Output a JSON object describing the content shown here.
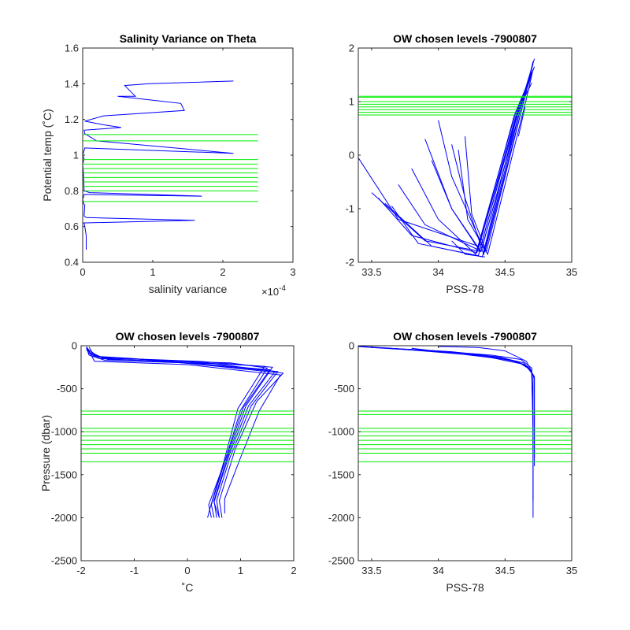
{
  "chart_data": [
    {
      "id": "tl",
      "type": "line",
      "title": "Salinity Variance on Theta",
      "xlabel": "salinity variance",
      "ylabel": "Potential temp (˚C)",
      "x_exponent_label": "×10",
      "x_exponent_power": "-4",
      "xlim": [
        0,
        3
      ],
      "ylim": [
        0.4,
        1.6
      ],
      "xticks": [
        0,
        1,
        2,
        3
      ],
      "yticks": [
        0.4,
        0.6,
        0.8,
        1.0,
        1.2,
        1.4,
        1.6
      ],
      "xtick_labels": [
        "0",
        "1",
        "2",
        "3"
      ],
      "ytick_labels": [
        "0.4",
        "0.6",
        "0.8",
        "1",
        "1.2",
        "1.4",
        "1.6"
      ],
      "grid": false,
      "series": [
        {
          "color": "#0000ff",
          "x": [
            0.05,
            0.05,
            0.03,
            0.02,
            0.0,
            1.6,
            0.05,
            0.02,
            0.03,
            0.01,
            0.01,
            0.0,
            0.02,
            1.7,
            0.1,
            0.02,
            0.01,
            0.0,
            0.02,
            0.01,
            0.0,
            0.03,
            2.15,
            0.2,
            0.03,
            0.02,
            0.55,
            0.3,
            0.03,
            0.3,
            1.45,
            1.4,
            0.5,
            0.75,
            0.6,
            0.95,
            2.15
          ],
          "y": [
            0.47,
            0.55,
            0.6,
            0.62,
            0.62,
            0.635,
            0.65,
            0.66,
            0.72,
            0.73,
            0.74,
            0.75,
            0.78,
            0.77,
            0.79,
            0.8,
            0.9,
            0.95,
            0.98,
            0.99,
            1.0,
            1.04,
            1.01,
            1.08,
            1.12,
            1.14,
            1.155,
            1.17,
            1.19,
            1.22,
            1.25,
            1.29,
            1.33,
            1.33,
            1.39,
            1.4,
            1.415
          ]
        }
      ],
      "hlines": [
        0.74,
        0.8,
        0.825,
        0.85,
        0.875,
        0.9,
        0.925,
        0.95,
        0.975,
        1.08,
        1.115
      ],
      "hline_xrange": [
        0,
        2.5
      ],
      "hline_color": "#00ee00"
    },
    {
      "id": "tr",
      "type": "line",
      "title": "OW chosen levels -7900807",
      "xlabel": "PSS-78",
      "ylabel": "",
      "xlim": [
        33.4,
        35
      ],
      "ylim": [
        -2,
        2
      ],
      "xticks": [
        33.5,
        34,
        34.5,
        35
      ],
      "yticks": [
        -2,
        -1,
        0,
        1,
        2
      ],
      "xtick_labels": [
        "33.5",
        "34",
        "34.5",
        "35"
      ],
      "ytick_labels": [
        "-2",
        "-1",
        "0",
        "1",
        "2"
      ],
      "grid": false,
      "series": [
        {
          "color": "#0000ff",
          "x": [
            33.4,
            33.7,
            34.3,
            34.6,
            34.72
          ],
          "y": [
            -0.05,
            -1.2,
            -1.7,
            0.8,
            1.8
          ]
        },
        {
          "color": "#0000ff",
          "x": [
            33.5,
            33.9,
            34.32,
            34.62,
            34.71
          ],
          "y": [
            -0.7,
            -1.6,
            -1.8,
            0.9,
            1.7
          ]
        },
        {
          "color": "#0000ff",
          "x": [
            34.0,
            34.1,
            34.35,
            34.64,
            34.7
          ],
          "y": [
            0.65,
            -0.4,
            -1.8,
            1.0,
            1.6
          ]
        },
        {
          "color": "#0000ff",
          "x": [
            33.9,
            34.1,
            34.3,
            34.6,
            34.7
          ],
          "y": [
            0.3,
            -1.0,
            -1.75,
            0.9,
            1.5
          ]
        },
        {
          "color": "#0000ff",
          "x": [
            33.8,
            34.0,
            34.28,
            34.58,
            34.68
          ],
          "y": [
            -0.25,
            -1.2,
            -1.85,
            0.8,
            1.4
          ]
        },
        {
          "color": "#0000ff",
          "x": [
            33.6,
            33.95,
            34.33,
            34.6,
            34.69
          ],
          "y": [
            -0.9,
            -1.7,
            -1.9,
            0.85,
            1.3
          ]
        },
        {
          "color": "#0000ff",
          "x": [
            34.2,
            34.25,
            34.36,
            34.65,
            34.71
          ],
          "y": [
            0.35,
            -1.1,
            -1.8,
            1.1,
            1.75
          ]
        },
        {
          "color": "#0000ff",
          "x": [
            33.7,
            33.9,
            34.31,
            34.61,
            34.72
          ],
          "y": [
            -0.55,
            -1.3,
            -1.78,
            0.95,
            1.65
          ]
        },
        {
          "color": "#0000ff",
          "x": [
            34.1,
            34.2,
            34.34,
            34.63,
            34.7
          ],
          "y": [
            0.2,
            -0.8,
            -1.85,
            1.0,
            1.5
          ]
        },
        {
          "color": "#0000ff",
          "x": [
            33.55,
            33.8,
            34.29,
            34.57,
            34.69
          ],
          "y": [
            -0.8,
            -1.5,
            -1.82,
            0.75,
            1.45
          ]
        },
        {
          "color": "#0000ff",
          "x": [
            34.15,
            34.22,
            34.37,
            34.66,
            34.71
          ],
          "y": [
            0.1,
            -1.2,
            -1.85,
            1.05,
            1.6
          ]
        },
        {
          "color": "#0000ff",
          "x": [
            33.95,
            34.1,
            34.32,
            34.62,
            34.7
          ],
          "y": [
            -0.1,
            -1.0,
            -1.8,
            0.9,
            1.55
          ]
        },
        {
          "color": "#0000ff",
          "x": [
            33.65,
            33.85,
            34.3,
            34.6,
            34.7
          ],
          "y": [
            -0.95,
            -1.65,
            -1.88,
            0.85,
            1.35
          ]
        },
        {
          "color": "#0000ff",
          "x": [
            34.6,
            34.65
          ],
          "y": [
            0.35,
            0.9
          ]
        },
        {
          "color": "#0000ff",
          "x": [
            34.1,
            34.2,
            34.35
          ],
          "y": [
            -1.6,
            -1.85,
            -1.9
          ]
        }
      ],
      "hlines": [
        0.75,
        0.8,
        0.85,
        0.9,
        0.95,
        1.0,
        1.08,
        1.1
      ],
      "hline_xrange": [
        33.4,
        35
      ],
      "hline_color": "#00ee00"
    },
    {
      "id": "bl",
      "type": "line",
      "title": "OW chosen levels -7900807",
      "xlabel": "˚C",
      "ylabel": "Pressure (dbar)",
      "xlim": [
        -2,
        2
      ],
      "ylim": [
        -2500,
        0
      ],
      "xticks": [
        -2,
        -1,
        0,
        1,
        2
      ],
      "yticks": [
        -2500,
        -2000,
        -1500,
        -1000,
        -500,
        0
      ],
      "xtick_labels": [
        "-2",
        "-1",
        "0",
        "1",
        "2"
      ],
      "ytick_labels": [
        "-2500",
        "-2000",
        "-1500",
        "-1000",
        "-500",
        "0"
      ],
      "grid": false,
      "series": [
        {
          "color": "#0000ff",
          "x": [
            -1.9,
            -1.85,
            -1.8,
            -1.0,
            1.7,
            1.2,
            0.8,
            0.55,
            0.6
          ],
          "y": [
            -10,
            -60,
            -120,
            -150,
            -300,
            -700,
            -1300,
            -1800,
            -2000
          ]
        },
        {
          "color": "#0000ff",
          "x": [
            -1.9,
            -1.8,
            -1.6,
            0.2,
            1.6,
            1.1,
            0.75,
            0.5,
            0.55
          ],
          "y": [
            -20,
            -80,
            -140,
            -180,
            -250,
            -700,
            -1300,
            -1800,
            -2000
          ]
        },
        {
          "color": "#0000ff",
          "x": [
            -1.88,
            -1.82,
            -1.5,
            0.8,
            1.5,
            1.0,
            0.7,
            0.45,
            0.5
          ],
          "y": [
            -30,
            -100,
            -160,
            -200,
            -260,
            -750,
            -1350,
            -1850,
            -2000
          ]
        },
        {
          "color": "#0000ff",
          "x": [
            -1.9,
            -1.85,
            -1.7,
            -0.5,
            1.8,
            1.3,
            0.9,
            0.6,
            0.65
          ],
          "y": [
            -40,
            -90,
            -130,
            -170,
            -320,
            -650,
            -1200,
            -1800,
            -2000
          ]
        },
        {
          "color": "#0000ff",
          "x": [
            -1.85,
            -1.8,
            -1.65,
            -0.2,
            1.55,
            1.05,
            0.72,
            0.4,
            0.45
          ],
          "y": [
            -15,
            -70,
            -150,
            -190,
            -280,
            -720,
            -1320,
            -1850,
            -2000
          ]
        },
        {
          "color": "#0000ff",
          "x": [
            -1.9,
            -1.85,
            -1.55,
            0.5,
            1.65,
            1.15,
            0.78,
            0.5,
            0.6
          ],
          "y": [
            -25,
            -110,
            -170,
            -210,
            -300,
            -700,
            -1280,
            -1820,
            -2000
          ]
        },
        {
          "color": "#0000ff",
          "x": [
            -1.88,
            -1.8,
            -1.75,
            0.0,
            1.75,
            1.35,
            1.0,
            0.7,
            0.7
          ],
          "y": [
            -35,
            -120,
            -180,
            -220,
            -340,
            -760,
            -1300,
            -1780,
            -1950
          ]
        },
        {
          "color": "#0000ff",
          "x": [
            -1.9,
            -1.82,
            -1.6,
            -0.8,
            1.45,
            0.95,
            0.68,
            0.42,
            0.38
          ],
          "y": [
            -45,
            -85,
            -145,
            -160,
            -240,
            -730,
            -1360,
            -1900,
            -2000
          ]
        }
      ],
      "hlines": [
        -760,
        -800,
        -960,
        -1000,
        -1050,
        -1100,
        -1150,
        -1200,
        -1250,
        -1350
      ],
      "hline_xrange": [
        -2,
        2
      ],
      "hline_color": "#00ee00"
    },
    {
      "id": "br",
      "type": "line",
      "title": "OW chosen levels -7900807",
      "xlabel": "PSS-78",
      "ylabel": "",
      "xlim": [
        33.4,
        35
      ],
      "ylim": [
        -2500,
        0
      ],
      "xticks": [
        33.5,
        34,
        34.5,
        35
      ],
      "yticks": [
        -2500,
        -2000,
        -1500,
        -1000,
        -500,
        0
      ],
      "xtick_labels": [
        "33.5",
        "34",
        "34.5",
        "35"
      ],
      "ytick_labels": [
        "-2500",
        "-2000",
        "-1500",
        "-1000",
        "-500",
        "0"
      ],
      "grid": false,
      "series": [
        {
          "color": "#0000ff",
          "x": [
            33.4,
            34.0,
            34.4,
            34.62,
            34.7,
            34.71,
            34.71,
            34.71
          ],
          "y": [
            -10,
            -60,
            -110,
            -160,
            -260,
            -800,
            -1500,
            -2000
          ]
        },
        {
          "color": "#0000ff",
          "x": [
            33.45,
            34.1,
            34.45,
            34.64,
            34.7,
            34.71,
            34.71
          ],
          "y": [
            -15,
            -70,
            -130,
            -200,
            -300,
            -900,
            -1800
          ]
        },
        {
          "color": "#0000ff",
          "x": [
            33.5,
            34.2,
            34.5,
            34.65,
            34.7,
            34.71
          ],
          "y": [
            -20,
            -90,
            -150,
            -220,
            -320,
            -1000
          ]
        },
        {
          "color": "#0000ff",
          "x": [
            33.4,
            34.3,
            34.55,
            34.67,
            34.71,
            34.71
          ],
          "y": [
            -5,
            -100,
            -170,
            -240,
            -340,
            -1200
          ]
        },
        {
          "color": "#0000ff",
          "x": [
            33.6,
            34.35,
            34.6,
            34.68,
            34.72,
            34.72
          ],
          "y": [
            -25,
            -120,
            -190,
            -260,
            -360,
            -1300
          ]
        },
        {
          "color": "#0000ff",
          "x": [
            33.8,
            34.4,
            34.62,
            34.69,
            34.72,
            34.72
          ],
          "y": [
            -30,
            -140,
            -210,
            -280,
            -380,
            -1400
          ]
        },
        {
          "color": "#0000ff",
          "x": [
            34.0,
            34.3,
            34.5,
            34.66,
            34.7
          ],
          "y": [
            -8,
            -20,
            -60,
            -180,
            -300
          ]
        }
      ],
      "hlines": [
        -760,
        -800,
        -960,
        -1000,
        -1050,
        -1100,
        -1150,
        -1200,
        -1250,
        -1350
      ],
      "hline_xrange": [
        33.4,
        35
      ],
      "hline_color": "#00ee00"
    }
  ]
}
